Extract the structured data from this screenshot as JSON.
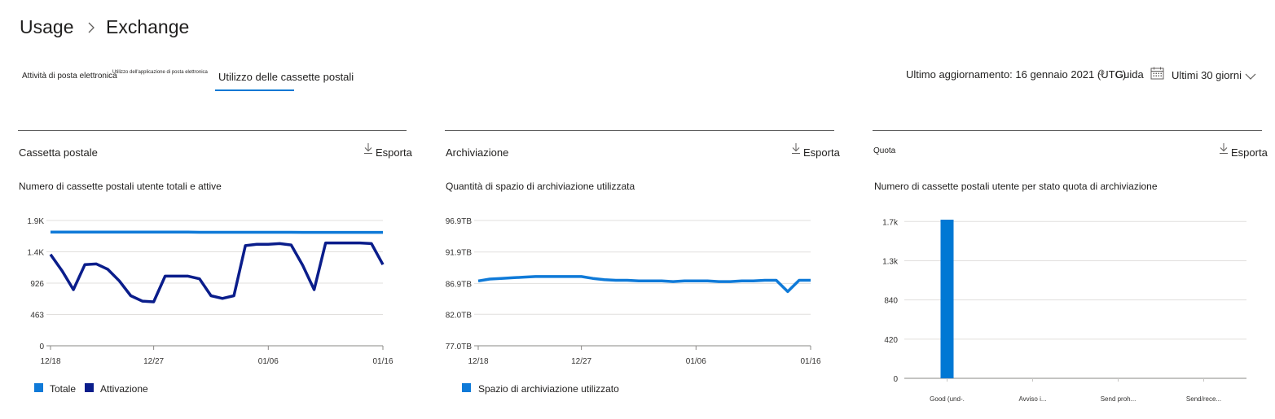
{
  "breadcrumb": {
    "root": "Usage",
    "current": "Exchange"
  },
  "tabs": [
    {
      "label": "Attività di posta elettronica"
    },
    {
      "label": "Utilizzo dell'applicazione di posta elettronica"
    },
    {
      "label": "Utilizzo delle cassette postali",
      "active": true
    }
  ],
  "header_right": {
    "last_update": "Ultimo aggiornamento: 16 gennaio 2021 (UTC)",
    "guide": "Guida",
    "period": "Ultimi 30 giorni"
  },
  "colors": {
    "accent": "#0078d4",
    "series_light": "#0f7ad8",
    "series_dark": "#0a1d8b"
  },
  "panels": [
    {
      "title": "Cassetta postale",
      "export": "Esporta",
      "subtitle": "Numero di cassette postali utente totali e attive",
      "legend": [
        {
          "label": "Totale",
          "color": "#0f7ad8"
        },
        {
          "label": "Attivazione",
          "color": "#0a1d8b"
        }
      ]
    },
    {
      "title": "Archiviazione",
      "export": "Esporta",
      "subtitle": "Quantità di spazio di archiviazione utilizzata",
      "legend": [
        {
          "label": "Spazio di archiviazione utilizzato",
          "color": "#0f7ad8"
        }
      ]
    },
    {
      "title": "Quota",
      "export": "Esporta",
      "subtitle": "Numero di cassette postali utente per stato quota di archiviazione",
      "legend": []
    }
  ],
  "chart_data": [
    {
      "type": "line",
      "ytick_labels": [
        "0",
        "463",
        "926",
        "1.4K",
        "1.9K"
      ],
      "ytick_values": [
        0,
        463,
        926,
        1389,
        1852
      ],
      "ylim": [
        0,
        1852
      ],
      "xtick_labels": [
        "12/18",
        "12/27",
        "01/06",
        "01/16"
      ],
      "xtick_positions": [
        0,
        9,
        19,
        29
      ],
      "x_count": 30,
      "series": [
        {
          "name": "Totale",
          "color": "#0f7ad8",
          "values": [
            1680,
            1680,
            1680,
            1680,
            1680,
            1680,
            1680,
            1680,
            1680,
            1680,
            1680,
            1680,
            1680,
            1678,
            1678,
            1678,
            1678,
            1678,
            1678,
            1678,
            1678,
            1678,
            1676,
            1676,
            1676,
            1676,
            1676,
            1676,
            1676,
            1676
          ]
        },
        {
          "name": "Attivazione",
          "color": "#0a1d8b",
          "values": [
            1350,
            1110,
            830,
            1200,
            1210,
            1130,
            960,
            740,
            660,
            650,
            1030,
            1030,
            1030,
            990,
            740,
            700,
            740,
            1480,
            1500,
            1500,
            1510,
            1490,
            1190,
            830,
            1520,
            1520,
            1520,
            1520,
            1510,
            1200
          ]
        }
      ]
    },
    {
      "type": "line",
      "ytick_labels": [
        "77.0TB",
        "82.0TB",
        "86.9TB",
        "91.9TB",
        "96.9TB"
      ],
      "ytick_values": [
        77.0,
        82.0,
        86.9,
        91.9,
        96.9
      ],
      "ylim": [
        77.0,
        96.9
      ],
      "xtick_labels": [
        "12/18",
        "12/27",
        "01/06",
        "01/16"
      ],
      "xtick_positions": [
        0,
        9,
        19,
        29
      ],
      "x_count": 30,
      "series": [
        {
          "name": "Spazio di archiviazione utilizzato",
          "color": "#0f7ad8",
          "values": [
            87.3,
            87.6,
            87.7,
            87.8,
            87.9,
            88.0,
            88.0,
            88.0,
            88.0,
            88.0,
            87.7,
            87.5,
            87.4,
            87.4,
            87.3,
            87.3,
            87.3,
            87.2,
            87.3,
            87.3,
            87.3,
            87.2,
            87.2,
            87.3,
            87.3,
            87.4,
            87.4,
            85.6,
            87.4,
            87.4
          ]
        }
      ]
    },
    {
      "type": "bar",
      "categories": [
        "Good (und-.",
        "Avviso     i...",
        "Send     proh...",
        "Send/rece..."
      ],
      "values": [
        1700,
        0,
        0,
        0
      ],
      "ytick_labels": [
        "0",
        "420",
        "840",
        "1.3k",
        "1.7k"
      ],
      "ytick_values": [
        0,
        420,
        840,
        1260,
        1680
      ],
      "ylim": [
        0,
        1700
      ],
      "color": "#0078d4"
    }
  ]
}
